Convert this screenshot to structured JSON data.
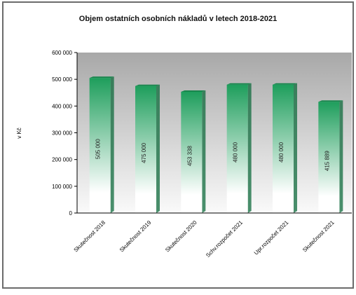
{
  "chart_data": {
    "type": "bar",
    "title": "Objem ostatních osobních nákladů v letech 2018-2021",
    "ylabel": "v Kč",
    "xlabel": "",
    "ylim": [
      0,
      600000
    ],
    "y_ticks": [
      0,
      100000,
      200000,
      300000,
      400000,
      500000,
      600000
    ],
    "y_tick_labels": [
      "0",
      "100 000",
      "200 000",
      "300 000",
      "400 000",
      "500 000",
      "600 000"
    ],
    "grid": false,
    "legend": "none",
    "categories": [
      "Skutečnost 2018",
      "Skutečnost 2019",
      "Skutečnost 2020",
      "Schv.rozpočet 2021",
      "Upr.rozpočet 2021",
      "Skutečnost 2021"
    ],
    "values": [
      505000,
      475000,
      453338,
      480000,
      480000,
      415889
    ],
    "data_labels": [
      "505 000",
      "475 000",
      "453 338",
      "480 000",
      "480 000",
      "415 889"
    ],
    "colors": {
      "bar_top": "#1e9e5c",
      "bar_bottom": "#ffffff",
      "plot_top": "#a8a8a8",
      "plot_bottom": "#fafafa",
      "axis": "#000000"
    }
  }
}
